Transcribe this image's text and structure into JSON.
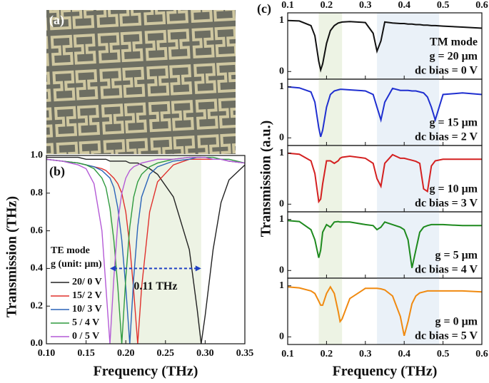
{
  "photo_label": "(a)",
  "chart_data": [
    {
      "type": "line",
      "label": "(b)",
      "xlabel": "Frequency (THz)",
      "ylabel": "Transmission (THz)",
      "xlim": [
        0.1,
        0.35
      ],
      "ylim": [
        0,
        1
      ],
      "xticks": [
        {
          "value": 0.1,
          "label": "0.10"
        },
        {
          "value": 0.15,
          "label": "0.15"
        },
        {
          "value": 0.2,
          "label": "0.20"
        },
        {
          "value": 0.25,
          "label": "0.25"
        },
        {
          "value": 0.3,
          "label": "0.30"
        },
        {
          "value": 0.35,
          "label": "0.35"
        }
      ],
      "yticks": [
        {
          "value": 0,
          "label": "0.0"
        },
        {
          "value": 0.2,
          "label": "0.2"
        },
        {
          "value": 0.4,
          "label": "0.4"
        },
        {
          "value": 0.6,
          "label": "0.6"
        },
        {
          "value": 0.8,
          "label": "0.8"
        },
        {
          "value": 1,
          "label": "1.0"
        }
      ],
      "shades": [
        {
          "range": [
            0.18,
            0.295
          ],
          "color": "#edf3e4"
        }
      ],
      "arrow": {
        "x": [
          0.18,
          0.295
        ],
        "y": 0.4,
        "label": "0.11 THz",
        "color": "#1f3fc4"
      },
      "legend_title": [
        "TE mode",
        "g (unit:  μm)"
      ],
      "legend": "lower left",
      "x": [
        0.1,
        0.12,
        0.14,
        0.15,
        0.16,
        0.17,
        0.175,
        0.18,
        0.185,
        0.19,
        0.195,
        0.2,
        0.205,
        0.21,
        0.215,
        0.22,
        0.23,
        0.24,
        0.26,
        0.28,
        0.29,
        0.295,
        0.3,
        0.31,
        0.32,
        0.33,
        0.35
      ],
      "series": [
        {
          "name": "20/ 0 V",
          "color": "#222222",
          "values": [
            0.99,
            0.99,
            0.99,
            0.98,
            0.98,
            0.98,
            0.98,
            0.97,
            0.97,
            0.97,
            0.97,
            0.97,
            0.96,
            0.96,
            0.96,
            0.95,
            0.93,
            0.9,
            0.78,
            0.5,
            0.18,
            0,
            0.15,
            0.5,
            0.75,
            0.87,
            0.95
          ]
        },
        {
          "name": "15/ 2 V",
          "color": "#e0302c",
          "values": [
            0.98,
            0.97,
            0.96,
            0.95,
            0.94,
            0.93,
            0.92,
            0.9,
            0.88,
            0.85,
            0.8,
            0.7,
            0.52,
            0.28,
            0,
            0.3,
            0.7,
            0.86,
            0.95,
            0.98,
            0.98,
            0.98,
            0.98,
            0.98,
            0.98,
            0.97,
            0.96
          ]
        },
        {
          "name": "10/ 3 V",
          "color": "#2a64b8",
          "values": [
            0.98,
            0.97,
            0.96,
            0.95,
            0.94,
            0.92,
            0.9,
            0.88,
            0.83,
            0.72,
            0.55,
            0.3,
            0,
            0.35,
            0.62,
            0.78,
            0.9,
            0.94,
            0.97,
            0.98,
            0.99,
            0.99,
            0.99,
            0.98,
            0.98,
            0.97,
            0.96
          ]
        },
        {
          "name": "5  / 4 V",
          "color": "#2e9a3e",
          "values": [
            0.98,
            0.97,
            0.96,
            0.95,
            0.93,
            0.88,
            0.83,
            0.72,
            0.55,
            0.3,
            0,
            0.35,
            0.62,
            0.78,
            0.86,
            0.9,
            0.94,
            0.96,
            0.98,
            0.99,
            0.99,
            0.99,
            0.99,
            0.99,
            0.98,
            0.98,
            0.96
          ]
        },
        {
          "name": "0  / 5 V",
          "color": "#b45ad6",
          "values": [
            0.98,
            0.97,
            0.95,
            0.93,
            0.85,
            0.6,
            0.3,
            0,
            0.35,
            0.65,
            0.8,
            0.88,
            0.92,
            0.94,
            0.95,
            0.96,
            0.97,
            0.98,
            0.98,
            0.99,
            0.99,
            0.99,
            0.99,
            0.98,
            0.98,
            0.97,
            0.96
          ]
        }
      ]
    },
    {
      "type": "stack",
      "label": "(c)",
      "xlabel": "Frequency (THz)",
      "ylabel": "Transmission (a.u.)",
      "xlim": [
        0.1,
        0.6
      ],
      "xticks": [
        0.1,
        0.2,
        0.3,
        0.4,
        0.5,
        0.6
      ],
      "shades": [
        {
          "range": [
            0.18,
            0.24
          ],
          "color": "#edf3e4"
        },
        {
          "range": [
            0.33,
            0.49
          ],
          "color": "#eaf1f8"
        }
      ],
      "x": [
        0.1,
        0.13,
        0.16,
        0.17,
        0.18,
        0.185,
        0.19,
        0.2,
        0.21,
        0.22,
        0.23,
        0.235,
        0.24,
        0.26,
        0.3,
        0.32,
        0.33,
        0.34,
        0.35,
        0.37,
        0.39,
        0.4,
        0.41,
        0.42,
        0.43,
        0.44,
        0.45,
        0.46,
        0.47,
        0.48,
        0.5,
        0.55,
        0.6
      ],
      "panels": [
        {
          "type": "line",
          "color": "#111111",
          "ylim": [
            -0.15,
            1.15
          ],
          "yticks": [
            0,
            1
          ],
          "annotations": [
            "TM mode",
            "g = 20 μm",
            "dc bias = 0 V"
          ],
          "values": [
            1.0,
            0.99,
            0.9,
            0.7,
            0.2,
            0.03,
            0.15,
            0.55,
            0.8,
            0.9,
            0.95,
            0.96,
            0.97,
            0.98,
            0.96,
            0.75,
            0.4,
            0.6,
            0.97,
            0.95,
            0.94,
            0.94,
            0.93,
            0.93,
            0.92,
            0.92,
            0.91,
            0.91,
            0.9,
            0.9,
            0.89,
            0.87,
            0.85
          ]
        },
        {
          "type": "line",
          "color": "#1f2fd0",
          "ylim": [
            -0.15,
            1.15
          ],
          "yticks": [
            0,
            1
          ],
          "annotations": [
            "g = 15 μm",
            "dc bias = 2 V"
          ],
          "values": [
            1.0,
            0.98,
            0.9,
            0.7,
            0.2,
            0.02,
            0.15,
            0.6,
            0.85,
            0.92,
            0.94,
            0.95,
            0.95,
            0.94,
            0.92,
            0.85,
            0.6,
            0.35,
            0.7,
            0.97,
            0.93,
            0.93,
            0.93,
            0.92,
            0.92,
            0.9,
            0.88,
            0.8,
            0.6,
            0.35,
            0.85,
            0.88,
            0.85
          ]
        },
        {
          "type": "line",
          "color": "#d42020",
          "ylim": [
            -0.15,
            1.15
          ],
          "yticks": [
            0,
            1
          ],
          "annotations": [
            "g = 10 μm",
            "dc bias = 3 V"
          ],
          "values": [
            1.0,
            0.98,
            0.85,
            0.6,
            0.05,
            0.1,
            0.4,
            0.85,
            0.85,
            0.8,
            0.85,
            0.9,
            0.92,
            0.94,
            0.9,
            0.8,
            0.5,
            0.35,
            0.8,
            0.97,
            0.9,
            0.9,
            0.88,
            0.86,
            0.84,
            0.8,
            0.3,
            0.25,
            0.75,
            0.85,
            0.88,
            0.88,
            0.88
          ]
        },
        {
          "type": "line",
          "color": "#1e8a1e",
          "ylim": [
            -0.15,
            1.15
          ],
          "yticks": [
            0,
            1
          ],
          "annotations": [
            "g = 5 μm",
            "dc bias = 4 V"
          ],
          "values": [
            0.98,
            0.96,
            0.8,
            0.6,
            0.25,
            0.4,
            0.75,
            0.9,
            0.85,
            0.95,
            0.96,
            0.95,
            0.95,
            0.95,
            0.9,
            0.88,
            0.8,
            0.85,
            0.95,
            0.9,
            0.85,
            0.8,
            0.6,
            0.05,
            0.4,
            0.75,
            0.85,
            0.88,
            0.9,
            0.9,
            0.9,
            0.88,
            0.88
          ]
        },
        {
          "type": "line",
          "color": "#f08a10",
          "ylim": [
            -0.15,
            1.15
          ],
          "yticks": [
            0,
            1
          ],
          "annotations": [
            "g = 0 μm",
            "dc bias = 5 V"
          ],
          "values": [
            0.98,
            0.96,
            0.9,
            0.85,
            0.7,
            0.62,
            0.62,
            0.85,
            0.98,
            0.85,
            0.5,
            0.3,
            0.35,
            0.75,
            0.95,
            0.95,
            0.95,
            0.94,
            0.92,
            0.8,
            0.4,
            0.02,
            0.3,
            0.65,
            0.8,
            0.86,
            0.88,
            0.9,
            0.9,
            0.9,
            0.9,
            0.9,
            0.88
          ]
        }
      ]
    }
  ]
}
